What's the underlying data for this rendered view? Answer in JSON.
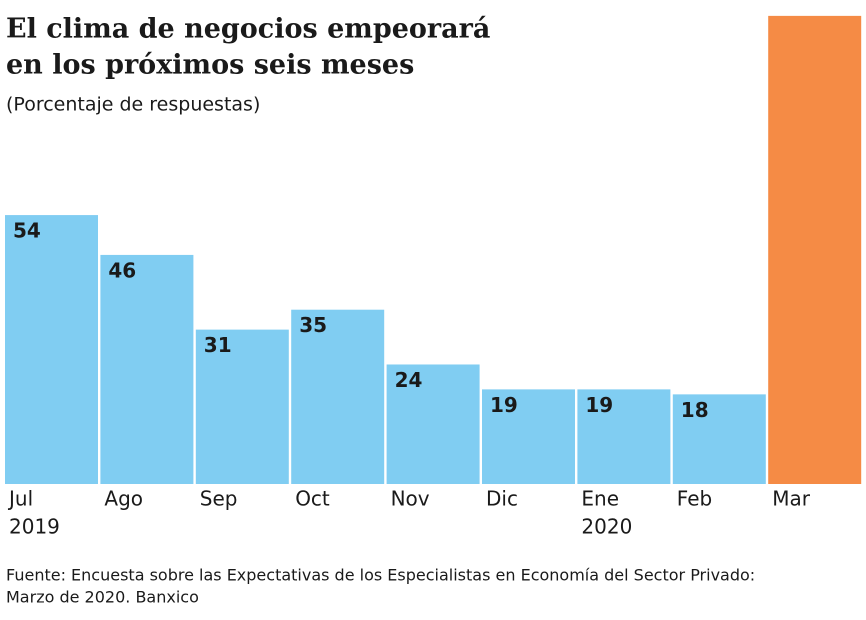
{
  "chart_data": {
    "type": "bar",
    "title": [
      "El clima de negocios empeorará",
      "en los próximos seis meses"
    ],
    "subtitle": "(Porcentaje de respuestas)",
    "categories": [
      "Jul",
      "Ago",
      "Sep",
      "Oct",
      "Nov",
      "Dic",
      "Ene",
      "Feb",
      "Mar"
    ],
    "category_sublabels": [
      "2019",
      null,
      null,
      null,
      null,
      null,
      "2020",
      null,
      null
    ],
    "values": [
      54,
      46,
      31,
      35,
      24,
      19,
      19,
      18,
      94
    ],
    "colors": [
      "#80cdf2",
      "#80cdf2",
      "#80cdf2",
      "#80cdf2",
      "#80cdf2",
      "#80cdf2",
      "#80cdf2",
      "#80cdf2",
      "#f58b45"
    ],
    "source": [
      "Fuente: Encuesta sobre las Expectativas de los Especialistas en Economía del Sector Privado:",
      "Marzo de 2020. Banxico"
    ]
  }
}
